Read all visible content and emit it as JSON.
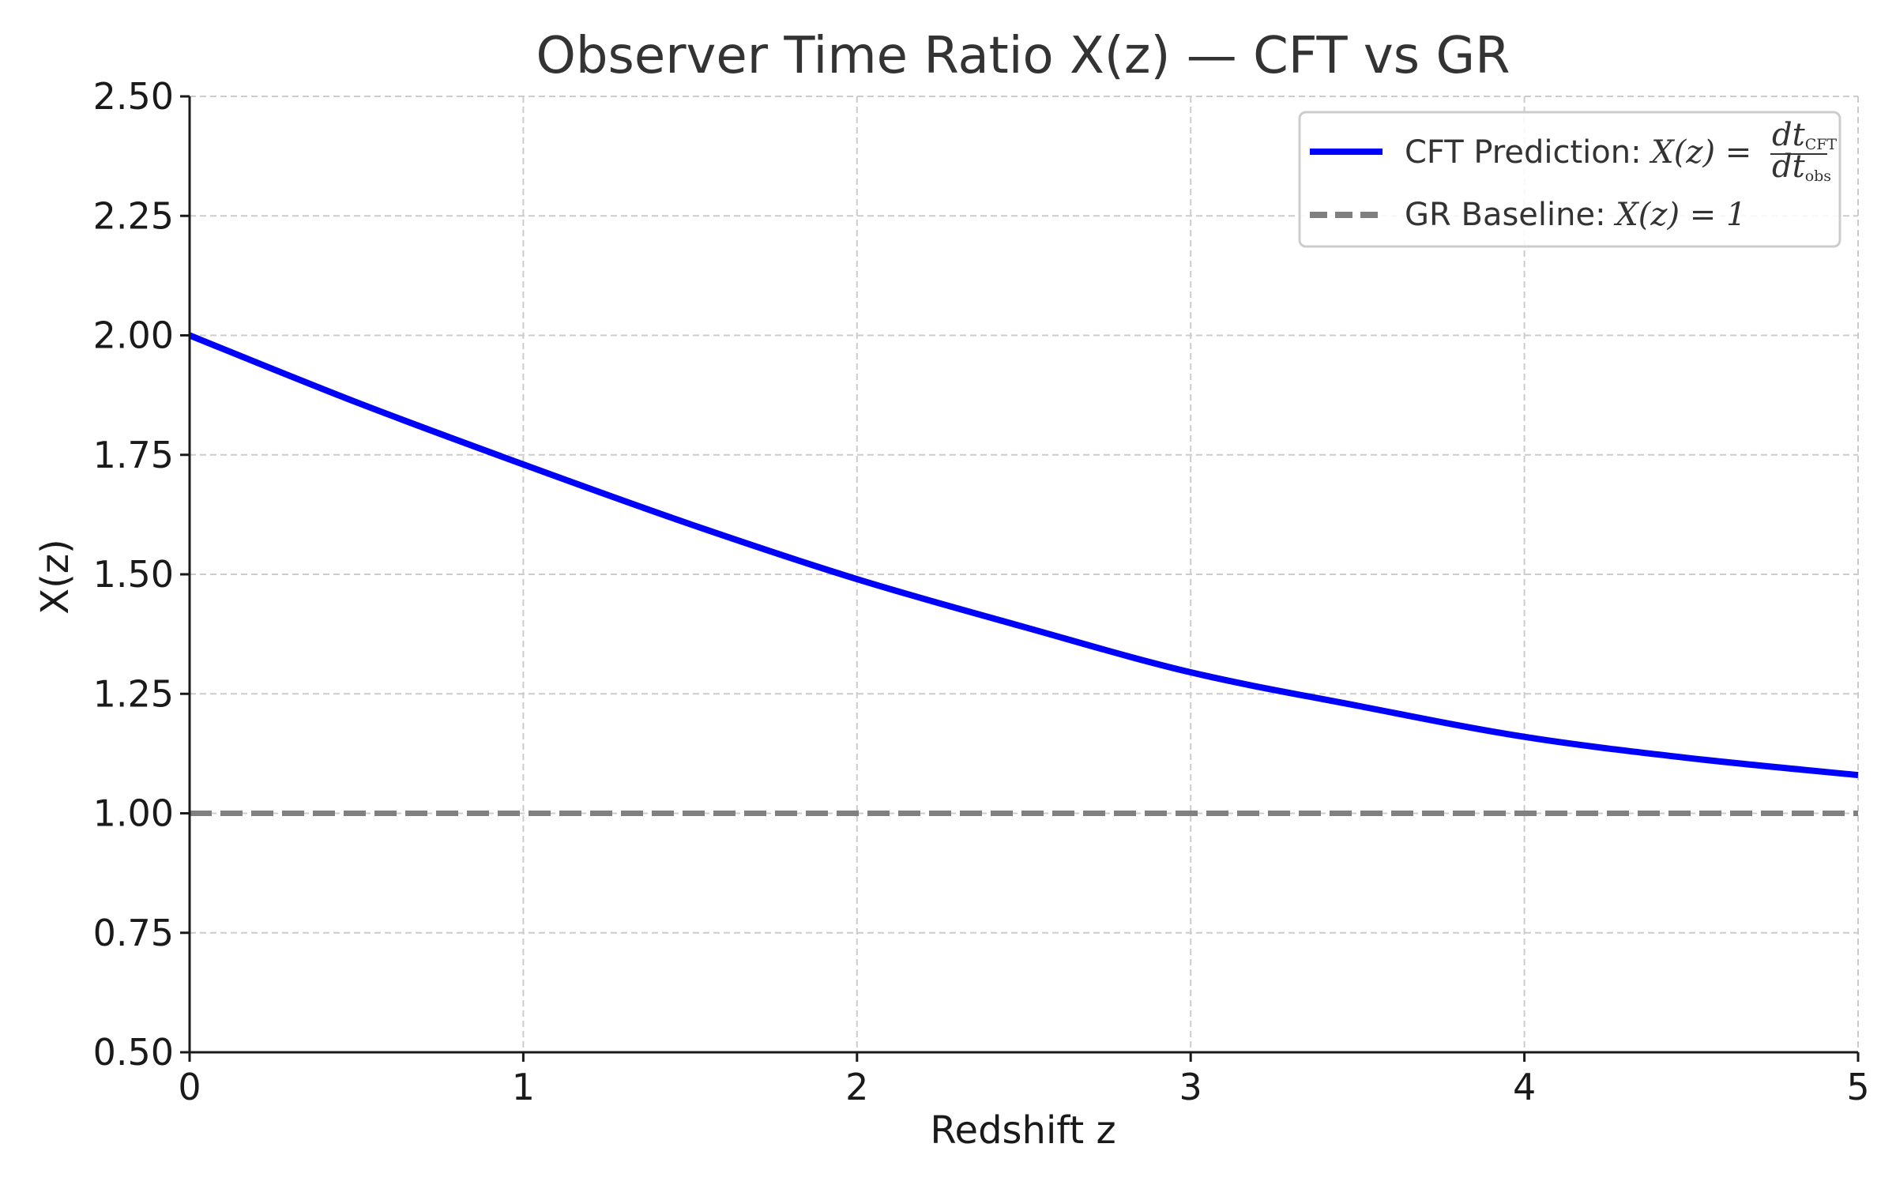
{
  "chart_data": {
    "type": "line",
    "title": "Observer Time Ratio X(z) — CFT vs GR",
    "xlabel": "Redshift z",
    "ylabel": "X(z)",
    "xlim": [
      0,
      5
    ],
    "ylim": [
      0.5,
      2.5
    ],
    "x_ticks": [
      "0",
      "1",
      "2",
      "3",
      "4",
      "5"
    ],
    "y_ticks": [
      "0.50",
      "0.75",
      "1.00",
      "1.25",
      "1.50",
      "1.75",
      "2.00",
      "2.25",
      "2.50"
    ],
    "grid": true,
    "legend_position": "top-right",
    "series": [
      {
        "name": "CFT Prediction: X(z) = dt_CFT / dt_obs",
        "legend_prefix": "CFT Prediction: ",
        "legend_math": "X(z) =",
        "legend_frac_num": "dt",
        "legend_frac_num_sub": "CFT",
        "legend_frac_den": "dt",
        "legend_frac_den_sub": "obs",
        "color": "#0000ff",
        "style": "solid",
        "x": [
          0,
          0.5,
          1,
          1.5,
          2,
          2.5,
          3,
          3.5,
          4,
          4.5,
          5
        ],
        "values": [
          2.0,
          1.86,
          1.73,
          1.605,
          1.49,
          1.39,
          1.295,
          1.225,
          1.16,
          1.115,
          1.08
        ]
      },
      {
        "name": "GR Baseline: X(z) = 1",
        "legend_prefix": "GR Baseline: ",
        "legend_math": "X(z) = 1",
        "color": "#808080",
        "style": "dashed",
        "x": [
          0,
          5
        ],
        "values": [
          1.0,
          1.0
        ]
      }
    ]
  }
}
